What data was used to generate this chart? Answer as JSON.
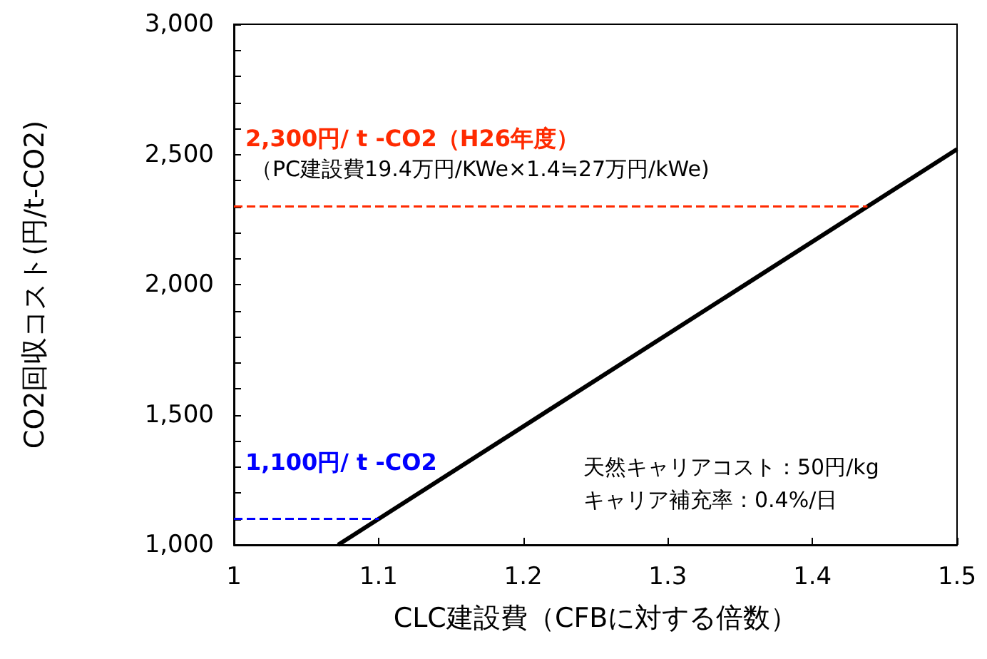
{
  "chart_data": {
    "type": "line",
    "xlabel": "CLC建設費（CFBに対する倍数）",
    "ylabel": "CO2回収コスト(円/t-CO2)",
    "series": [
      {
        "color": "#000000",
        "x": [
          1.072,
          1.5
        ],
        "values": [
          1000,
          2520
        ]
      }
    ],
    "xlim": [
      1,
      1.5
    ],
    "xticks": [
      1,
      1.1,
      1.2,
      1.3,
      1.4,
      1.5
    ],
    "ylim": [
      1000,
      3000
    ],
    "yticks": [
      {
        "value": 1000,
        "label": "1,000"
      },
      {
        "value": 1100,
        "label": null
      },
      {
        "value": 1200,
        "label": null
      },
      {
        "value": 1300,
        "label": null
      },
      {
        "value": 1400,
        "label": null
      },
      {
        "value": 1500,
        "label": "1,500"
      },
      {
        "value": 1600,
        "label": null
      },
      {
        "value": 1700,
        "label": null
      },
      {
        "value": 1800,
        "label": null
      },
      {
        "value": 1900,
        "label": null
      },
      {
        "value": 2000,
        "label": "2,000"
      },
      {
        "value": 2100,
        "label": null
      },
      {
        "value": 2200,
        "label": null
      },
      {
        "value": 2300,
        "label": null
      },
      {
        "value": 2400,
        "label": null
      },
      {
        "value": 2500,
        "label": "2,500"
      },
      {
        "value": 2600,
        "label": null
      },
      {
        "value": 2700,
        "label": null
      },
      {
        "value": 2800,
        "label": null
      },
      {
        "value": 2900,
        "label": null
      },
      {
        "value": 3000,
        "label": "3,000"
      }
    ],
    "ref_lines": [
      {
        "axis": "y",
        "value": 2300,
        "label": "2,300円/ t -CO2（H26年度）",
        "color": "#ff2a00",
        "line_style": "dashed"
      },
      {
        "axis": "y",
        "value": 1100,
        "label": "1,100円/ t -CO2",
        "color": "#0000ff",
        "line_style": "dashed"
      }
    ],
    "annotations": [
      "（PC建設費19.4万円/KWe×1.4≒27万円/kWe)",
      "天然キャリアコスト：50円/kg",
      "キャリア補充率：0.4%/日"
    ],
    "marker": "none",
    "line_style": "solid",
    "grid": false
  }
}
